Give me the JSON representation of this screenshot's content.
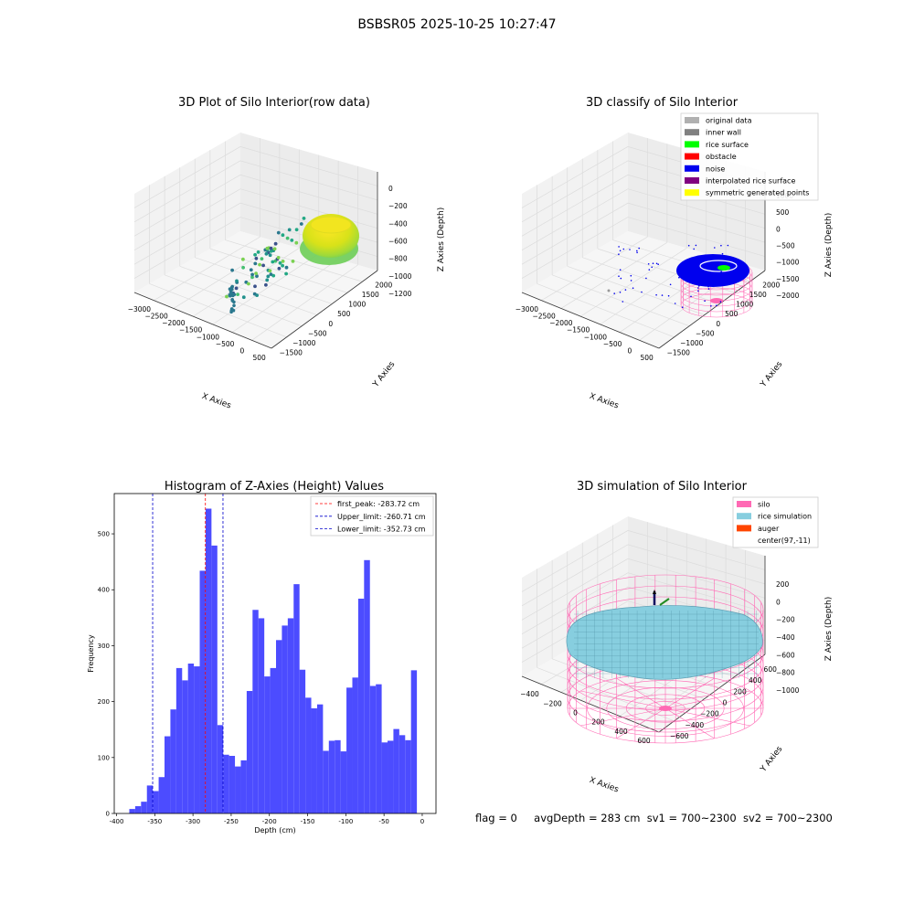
{
  "suptitle": "BSBSR05 2025-10-25 10:27:47",
  "status": {
    "flag": "flag = 0",
    "avg_depth": "avgDepth = 283 cm",
    "sv1": "sv1 = 700~2300",
    "sv2": "sv2 = 700~2300"
  },
  "colors": {
    "hist_bar": "#4c4cff",
    "first_peak": "#ff0000",
    "limits": "#0000cc",
    "silo": "#ff69b4",
    "rice": "#87cedf",
    "auger": "#ff4500",
    "noise": "#0000ee",
    "rice_surface": "#00ff00"
  },
  "chart_data": [
    {
      "id": "raw",
      "type": "scatter3d",
      "title": "3D Plot of Silo Interior(row data)",
      "xlabel": "X Axies",
      "ylabel": "Y Axies",
      "zlabel": "Z Axies (Depth)",
      "x_ticks": [
        "−3000",
        "−2500",
        "−2000",
        "−1500",
        "−1000",
        "−500",
        "0",
        "500"
      ],
      "y_ticks": [
        "−1500",
        "−1000",
        "−500",
        "0",
        "500",
        "1000",
        "1500",
        "2000"
      ],
      "z_ticks": [
        "−1200",
        "−1000",
        "−800",
        "−600",
        "−400",
        "−200",
        "0"
      ],
      "colormap": "viridis"
    },
    {
      "id": "classify",
      "type": "scatter3d",
      "title": "3D classify of Silo Interior",
      "xlabel": "X Axies",
      "ylabel": "Y Axies",
      "zlabel": "Z Axies (Depth)",
      "x_ticks": [
        "−3000",
        "−2500",
        "−2000",
        "−1500",
        "−1000",
        "−500",
        "0",
        "500"
      ],
      "y_ticks": [
        "−1500",
        "−1000",
        "−500",
        "0",
        "500",
        "1000",
        "1500",
        "2000"
      ],
      "z_ticks": [
        "−2000",
        "−1500",
        "−1000",
        "−500",
        "0",
        "500",
        "1000"
      ],
      "legend": [
        {
          "label": "original data",
          "color": "#b0b0b0"
        },
        {
          "label": "inner wall",
          "color": "#808080"
        },
        {
          "label": "rice surface",
          "color": "#00ff00"
        },
        {
          "label": "obstacle",
          "color": "#ff0000"
        },
        {
          "label": "noise",
          "color": "#0000ee"
        },
        {
          "label": "interpolated rice surface",
          "color": "#800080"
        },
        {
          "label": "symmetric generated points",
          "color": "#ffff00"
        }
      ],
      "legend_position": "top-right"
    },
    {
      "id": "histogram",
      "type": "bar",
      "title": "Histogram of Z-Axies (Height) Values",
      "xlabel": "Depth (cm)",
      "ylabel": "Frequency",
      "xlim": [
        -403,
        18
      ],
      "ylim": [
        0,
        572
      ],
      "x_ticks": [
        -400,
        -350,
        -300,
        -250,
        -200,
        -150,
        -100,
        -50,
        0
      ],
      "y_ticks": [
        0,
        100,
        200,
        300,
        400,
        500
      ],
      "bin_start": -383.3,
      "bin_width": 7.68,
      "values": [
        8,
        13,
        21,
        50,
        40,
        65,
        138,
        186,
        260,
        238,
        268,
        263,
        434,
        545,
        479,
        158,
        105,
        103,
        84,
        95,
        219,
        364,
        349,
        245,
        260,
        310,
        336,
        349,
        410,
        257,
        207,
        188,
        195,
        112,
        130,
        131,
        111,
        225,
        243,
        384,
        453,
        228,
        231,
        127,
        130,
        151,
        140,
        131,
        256
      ],
      "vlines": [
        {
          "label": "first_peak: -283.72 cm",
          "x": -283.72,
          "color": "#ff0000"
        },
        {
          "label": "Upper_limit: -260.71 cm",
          "x": -260.71,
          "color": "#0000cc"
        },
        {
          "label": "Lower_limit: -352.73 cm",
          "x": -352.73,
          "color": "#0000cc"
        }
      ],
      "legend_position": "top-right"
    },
    {
      "id": "simulation",
      "type": "surface3d",
      "title": "3D simulation of Silo Interior",
      "xlabel": "X Axies",
      "ylabel": "Y Axies",
      "zlabel": "Z Axies (Depth)",
      "x_ticks": [
        "−400",
        "−200",
        "0",
        "200",
        "400",
        "600"
      ],
      "y_ticks": [
        "−600",
        "−400",
        "−200",
        "0",
        "200",
        "400",
        "600"
      ],
      "z_ticks": [
        "−1000",
        "−800",
        "−600",
        "−400",
        "−200",
        "0",
        "200"
      ],
      "legend": [
        {
          "label": "silo",
          "color": "#ff69b4"
        },
        {
          "label": "rice simulation",
          "color": "#87cedf"
        },
        {
          "label": "auger",
          "color": "#ff4500"
        },
        {
          "label": "center(97,-11)",
          "color": "#ffffff"
        }
      ],
      "legend_position": "top-right"
    }
  ]
}
